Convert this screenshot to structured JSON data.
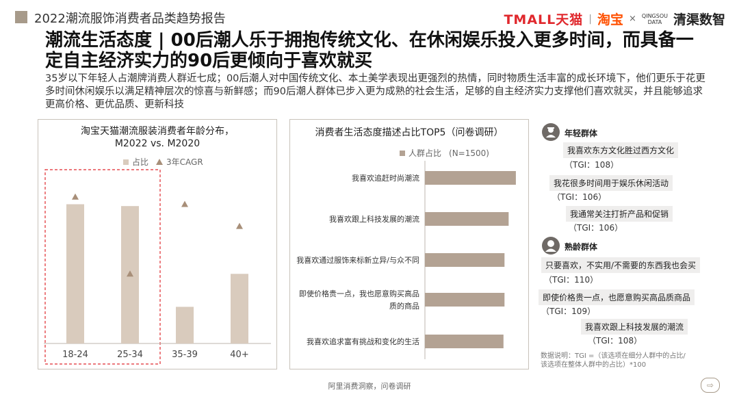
{
  "header": {
    "title": "2022潮流服饰消费者品类趋势报告",
    "logo_tmall": "TMALL天猫",
    "logo_taobao": "淘宝",
    "logo_x": "×",
    "logo_qs_top": "QINGSOU",
    "logo_qs_bottom": "DATA",
    "logo_qs_name": "清渠数智"
  },
  "main_title": "潮流生活态度 | 00后潮人乐于拥抱传统文化、在休闲娱乐投入更多时间，而具备一定自主经济实力的90后更倾向于喜欢就买",
  "intro": "35岁以下年轻人占潮牌消费人群近七成；00后潮人对中国传统文化、本土美学表现出更强烈的热情，同时物质生活丰富的成长环境下，他们更乐于花更多时间休闲娱乐以满足精神层次的惊喜与新鲜感；而90后潮人群体已步入更为成熟的社会生活，足够的自主经济实力支撑他们喜欢就买，并且能够追求更高价格、更优品质、更新科技",
  "colors": {
    "bar": "#d9cbbd",
    "bar2": "#b3a293",
    "marker": "#a88f79",
    "highlight": "#e0282d"
  },
  "chart_data": [
    {
      "type": "bar",
      "title_line1": "淘宝天猫潮流服装消费者年龄分布，",
      "title_line2": "M2022 vs. M2020",
      "categories": [
        "18-24",
        "25-34",
        "35-39",
        "40+"
      ],
      "series": [
        {
          "name": "占比",
          "values": [
            38,
            37.5,
            10,
            19
          ]
        },
        {
          "name": "3年CAGR",
          "values": [
            40,
            19,
            38,
            32
          ],
          "marker": "triangle"
        }
      ],
      "highlighted_categories": [
        "18-24",
        "25-34"
      ],
      "ylim": [
        0,
        45
      ]
    },
    {
      "type": "bar",
      "orientation": "horizontal",
      "title": "消费者生活态度描述占比TOP5（问卷调研）",
      "legend_label": "人群占比",
      "legend_note": "(N=1500)",
      "categories": [
        "我喜欢追赶时尚潮流",
        "我喜欢跟上科技发展的潮流",
        "我喜欢通过服饰来标新立异/与众不同",
        "即使价格贵一点，我也愿意购买高品质的商品",
        "我喜欢追求富有挑战和变化的生活"
      ],
      "values": [
        44,
        40.5,
        38.5,
        38.5,
        38
      ],
      "xlim": [
        0,
        48
      ]
    }
  ],
  "young_group": {
    "title": "年轻群体",
    "items": [
      {
        "text": "我喜欢东方文化胜过西方文化",
        "tgi": "（TGI：108）"
      },
      {
        "text": "我花很多时间用于娱乐休闲活动",
        "tgi": "（TGI：106）"
      },
      {
        "text": "我通常关注打折产品和促销",
        "tgi": "（TGI：106）"
      }
    ]
  },
  "mature_group": {
    "title": "熟龄群体",
    "items": [
      {
        "text": "只要喜欢，不实用/不需要的东西我也会买",
        "tgi": "（TGI：110）"
      },
      {
        "text": "即使价格贵一点，也愿意购买高品质商品",
        "tgi": "（TGI：109）"
      },
      {
        "text": "我喜欢跟上科技发展的潮流",
        "tgi": "（TGI：108）"
      }
    ]
  },
  "footnote_line1": "数据说明：TGI =（该选项在细分人群中的占比/",
  "footnote_line2": "该选项在整体人群中的占比）*100",
  "source": "阿里消费洞察，问卷调研",
  "exit_icon": "exit-arrow-icon"
}
